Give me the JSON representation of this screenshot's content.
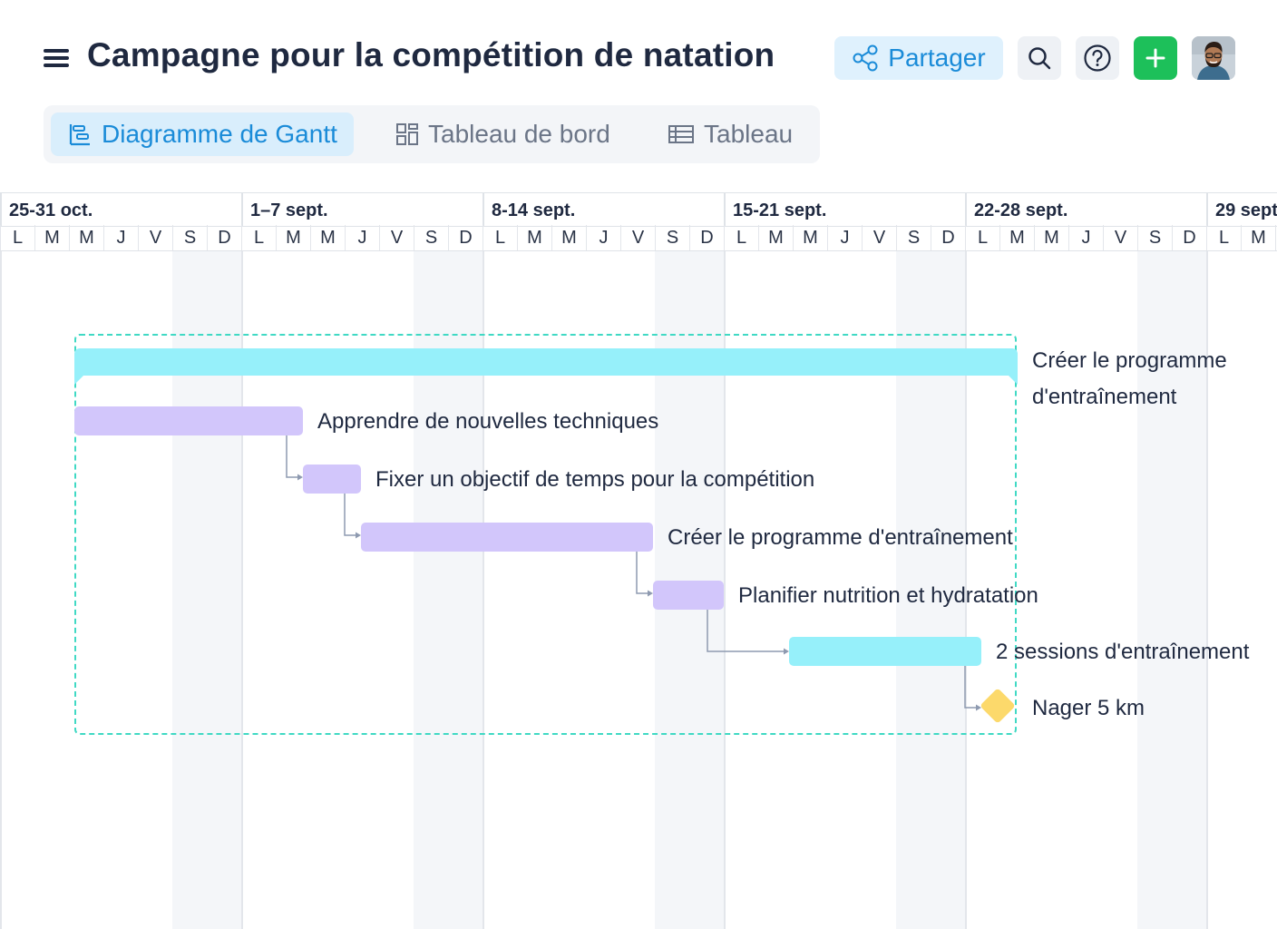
{
  "header": {
    "title": "Campagne pour la compétition de natation",
    "share_label": "Partager"
  },
  "tabs": [
    {
      "label": "Diagramme de Gantt",
      "active": true,
      "icon": "gantt-icon"
    },
    {
      "label": "Tableau de bord",
      "active": false,
      "icon": "dashboard-icon"
    },
    {
      "label": "Tableau",
      "active": false,
      "icon": "table-icon"
    }
  ],
  "timeline": {
    "weeks": [
      "25-31 oct.",
      "1–7 sept.",
      "8-14 sept.",
      "15-21 sept.",
      "22-28 sept.",
      "29 sept"
    ],
    "days": [
      "L",
      "M",
      "M",
      "J",
      "V",
      "S",
      "D"
    ]
  },
  "tasks": {
    "group": "Créer le programme d'entraînement",
    "group_line1": "Créer le programme",
    "group_line2": "d'entraînement",
    "t1": "Apprendre de nouvelles techniques",
    "t2": "Fixer un objectif de temps pour la compétition",
    "t3": "Créer le programme d'entraînement",
    "t4": "Planifier nutrition et hydratation",
    "t5": "2 sessions d'entraînement",
    "milestone": "Nager 5 km"
  },
  "colors": {
    "accent": "#1a8bd8",
    "add_button": "#1dc05a",
    "task_purple": "#d2c6fb",
    "task_cyan": "#96f0fa",
    "milestone": "#fcd96b",
    "group_border": "#40d9c4"
  }
}
